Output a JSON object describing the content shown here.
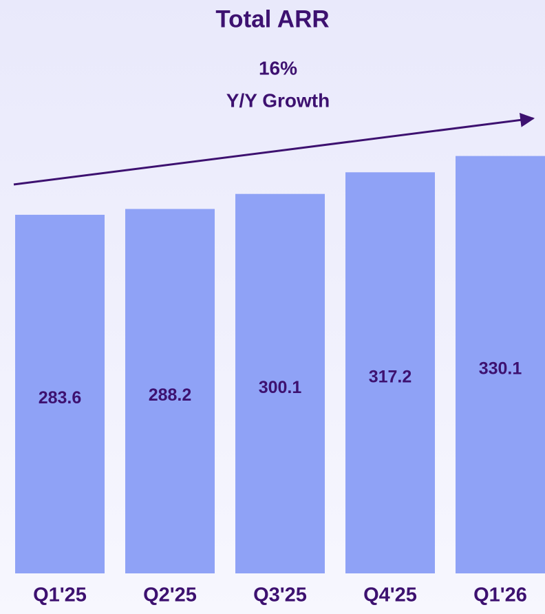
{
  "chart_data": {
    "type": "bar",
    "title": "Total ARR",
    "annotation": [
      "16%",
      "Y/Y Growth"
    ],
    "categories": [
      "Q1'25",
      "Q2'25",
      "Q3'25",
      "Q4'25",
      "Q1'26"
    ],
    "values": [
      283.6,
      288.2,
      300.1,
      317.2,
      330.1
    ],
    "color": "#8fa2f6",
    "text_color": "#3d1170"
  }
}
